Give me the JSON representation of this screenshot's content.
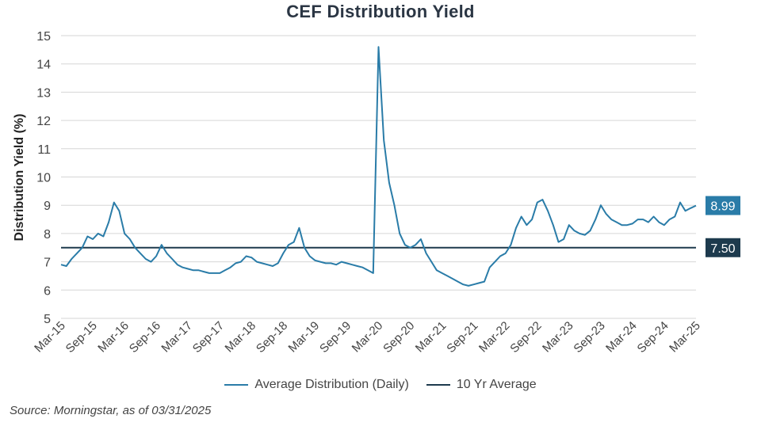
{
  "chart_data": {
    "type": "line",
    "title": "CEF Distribution Yield",
    "ylabel": "Distribution Yield (%)",
    "xlabel": "",
    "ylim": [
      5,
      15
    ],
    "yticks": [
      "5",
      "6",
      "7",
      "8",
      "9",
      "10",
      "11",
      "12",
      "13",
      "14",
      "15"
    ],
    "x_range": [
      "Mar-15",
      "Mar-25"
    ],
    "xticks": [
      "Mar-15",
      "Sep-15",
      "Mar-16",
      "Sep-16",
      "Mar-17",
      "Sep-17",
      "Mar-18",
      "Sep-18",
      "Mar-19",
      "Sep-19",
      "Mar-20",
      "Sep-20",
      "Mar-21",
      "Sep-21",
      "Mar-22",
      "Sep-22",
      "Mar-23",
      "Sep-23",
      "Mar-24",
      "Sep-24",
      "Mar-25"
    ],
    "grid": true,
    "legend_placement": "bottom",
    "series": [
      {
        "name": "Average Distribution (Daily)",
        "color": "#2a7ca8",
        "end_label": "8.99",
        "points": [
          [
            "Mar-15",
            6.9
          ],
          [
            "Apr-15",
            6.85
          ],
          [
            "May-15",
            7.1
          ],
          [
            "Jun-15",
            7.3
          ],
          [
            "Jul-15",
            7.5
          ],
          [
            "Aug-15",
            7.9
          ],
          [
            "Sep-15",
            7.8
          ],
          [
            "Oct-15",
            8.0
          ],
          [
            "Nov-15",
            7.9
          ],
          [
            "Dec-15",
            8.4
          ],
          [
            "Jan-16",
            9.1
          ],
          [
            "Feb-16",
            8.8
          ],
          [
            "Mar-16",
            8.0
          ],
          [
            "Apr-16",
            7.8
          ],
          [
            "May-16",
            7.5
          ],
          [
            "Jun-16",
            7.3
          ],
          [
            "Jul-16",
            7.1
          ],
          [
            "Aug-16",
            7.0
          ],
          [
            "Sep-16",
            7.2
          ],
          [
            "Oct-16",
            7.6
          ],
          [
            "Nov-16",
            7.3
          ],
          [
            "Dec-16",
            7.1
          ],
          [
            "Jan-17",
            6.9
          ],
          [
            "Feb-17",
            6.8
          ],
          [
            "Mar-17",
            6.75
          ],
          [
            "Apr-17",
            6.7
          ],
          [
            "May-17",
            6.7
          ],
          [
            "Jun-17",
            6.65
          ],
          [
            "Jul-17",
            6.6
          ],
          [
            "Aug-17",
            6.6
          ],
          [
            "Sep-17",
            6.6
          ],
          [
            "Oct-17",
            6.7
          ],
          [
            "Nov-17",
            6.8
          ],
          [
            "Dec-17",
            6.95
          ],
          [
            "Jan-18",
            7.0
          ],
          [
            "Feb-18",
            7.2
          ],
          [
            "Mar-18",
            7.15
          ],
          [
            "Apr-18",
            7.0
          ],
          [
            "May-18",
            6.95
          ],
          [
            "Jun-18",
            6.9
          ],
          [
            "Jul-18",
            6.85
          ],
          [
            "Aug-18",
            6.95
          ],
          [
            "Sep-18",
            7.3
          ],
          [
            "Oct-18",
            7.6
          ],
          [
            "Nov-18",
            7.7
          ],
          [
            "Dec-18",
            8.2
          ],
          [
            "Jan-19",
            7.5
          ],
          [
            "Feb-19",
            7.2
          ],
          [
            "Mar-19",
            7.05
          ],
          [
            "Apr-19",
            7.0
          ],
          [
            "May-19",
            6.95
          ],
          [
            "Jun-19",
            6.95
          ],
          [
            "Jul-19",
            6.9
          ],
          [
            "Aug-19",
            7.0
          ],
          [
            "Sep-19",
            6.95
          ],
          [
            "Oct-19",
            6.9
          ],
          [
            "Nov-19",
            6.85
          ],
          [
            "Dec-19",
            6.8
          ],
          [
            "Jan-20",
            6.7
          ],
          [
            "Feb-20",
            6.6
          ],
          [
            "Mar-20",
            14.6
          ],
          [
            "Apr-20",
            11.3
          ],
          [
            "May-20",
            9.8
          ],
          [
            "Jun-20",
            9.0
          ],
          [
            "Jul-20",
            8.0
          ],
          [
            "Aug-20",
            7.6
          ],
          [
            "Sep-20",
            7.5
          ],
          [
            "Oct-20",
            7.6
          ],
          [
            "Nov-20",
            7.8
          ],
          [
            "Dec-20",
            7.3
          ],
          [
            "Jan-21",
            7.0
          ],
          [
            "Feb-21",
            6.7
          ],
          [
            "Mar-21",
            6.6
          ],
          [
            "Apr-21",
            6.5
          ],
          [
            "May-21",
            6.4
          ],
          [
            "Jun-21",
            6.3
          ],
          [
            "Jul-21",
            6.2
          ],
          [
            "Aug-21",
            6.15
          ],
          [
            "Sep-21",
            6.2
          ],
          [
            "Oct-21",
            6.25
          ],
          [
            "Nov-21",
            6.3
          ],
          [
            "Dec-21",
            6.8
          ],
          [
            "Jan-22",
            7.0
          ],
          [
            "Feb-22",
            7.2
          ],
          [
            "Mar-22",
            7.3
          ],
          [
            "Apr-22",
            7.6
          ],
          [
            "May-22",
            8.2
          ],
          [
            "Jun-22",
            8.6
          ],
          [
            "Jul-22",
            8.3
          ],
          [
            "Aug-22",
            8.5
          ],
          [
            "Sep-22",
            9.1
          ],
          [
            "Oct-22",
            9.2
          ],
          [
            "Nov-22",
            8.8
          ],
          [
            "Dec-22",
            8.3
          ],
          [
            "Jan-23",
            7.7
          ],
          [
            "Feb-23",
            7.8
          ],
          [
            "Mar-23",
            8.3
          ],
          [
            "Apr-23",
            8.1
          ],
          [
            "May-23",
            8.0
          ],
          [
            "Jun-23",
            7.95
          ],
          [
            "Jul-23",
            8.1
          ],
          [
            "Aug-23",
            8.5
          ],
          [
            "Sep-23",
            9.0
          ],
          [
            "Oct-23",
            8.7
          ],
          [
            "Nov-23",
            8.5
          ],
          [
            "Dec-23",
            8.4
          ],
          [
            "Jan-24",
            8.3
          ],
          [
            "Feb-24",
            8.3
          ],
          [
            "Mar-24",
            8.35
          ],
          [
            "Apr-24",
            8.5
          ],
          [
            "May-24",
            8.5
          ],
          [
            "Jun-24",
            8.4
          ],
          [
            "Jul-24",
            8.6
          ],
          [
            "Aug-24",
            8.4
          ],
          [
            "Sep-24",
            8.3
          ],
          [
            "Oct-24",
            8.5
          ],
          [
            "Nov-24",
            8.6
          ],
          [
            "Dec-24",
            9.1
          ],
          [
            "Jan-25",
            8.8
          ],
          [
            "Feb-25",
            8.9
          ],
          [
            "Mar-25",
            8.99
          ]
        ]
      },
      {
        "name": "10 Yr Average",
        "color": "#1d3a4d",
        "value": 7.5,
        "end_label": "7.50"
      }
    ]
  },
  "source": "Source: Morningstar, as of 03/31/2025"
}
